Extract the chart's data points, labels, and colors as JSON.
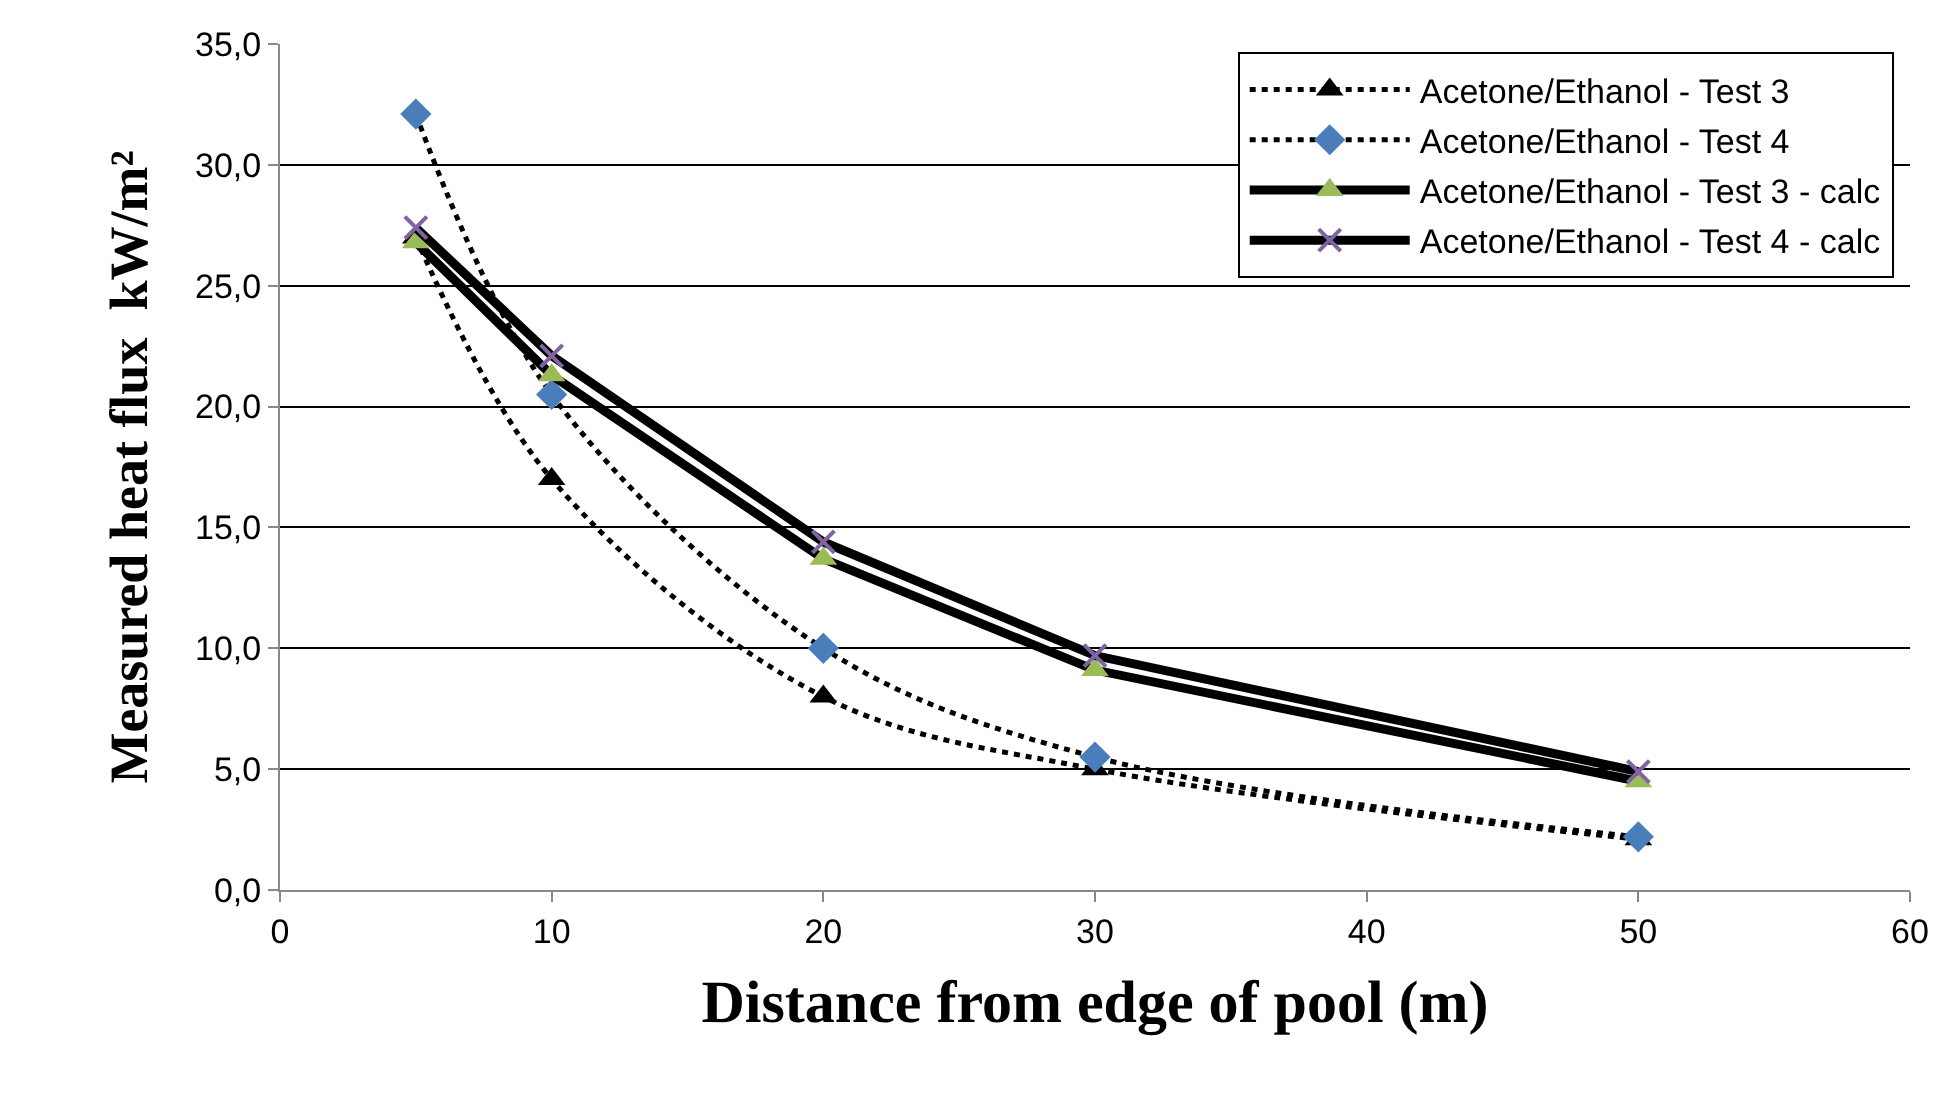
{
  "chart_data": {
    "type": "line",
    "xlabel": "Distance from edge of pool (m)",
    "ylabel": "Measured heat flux  kW/m²",
    "x": [
      5,
      10,
      20,
      30,
      50
    ],
    "series": [
      {
        "name": "Acetone/Ethanol - Test 3",
        "color": "#000000",
        "colors": [
          "#000000",
          "#000000",
          "#000000",
          "#000000",
          "#000000"
        ],
        "marker": "triangle",
        "line_style": "dotted",
        "values": [
          27.0,
          17.0,
          8.0,
          5.0,
          2.1
        ]
      },
      {
        "name": "Acetone/Ethanol - Test 4",
        "color": "#000000",
        "colors": [
          "#4a7ebb",
          "#4a7ebb",
          "#4a7ebb",
          "#4a7ebb",
          "#4a7ebb"
        ],
        "marker": "diamond",
        "line_style": "dotted",
        "values": [
          32.1,
          20.5,
          10.0,
          5.5,
          2.2
        ]
      },
      {
        "name": "Acetone/Ethanol - Test 3 - calc",
        "color": "#000000",
        "colors": [
          "#9bbb59",
          "#9bbb59",
          "#9bbb59",
          "#9bbb59",
          "#9bbb59"
        ],
        "marker": "triangle",
        "line_style": "solid",
        "values": [
          26.8,
          21.3,
          13.7,
          9.1,
          4.5
        ]
      },
      {
        "name": "Acetone/Ethanol - Test 4 - calc",
        "color": "#000000",
        "colors": [
          "#8064a2",
          "#8064a2",
          "#8064a2",
          "#8064a2",
          "#8064a2"
        ],
        "marker": "cross",
        "line_style": "solid",
        "values": [
          27.4,
          22.1,
          14.4,
          9.7,
          4.9
        ]
      }
    ],
    "xlim": [
      0,
      60
    ],
    "xticks": [
      0,
      10,
      20,
      30,
      40,
      50,
      60
    ],
    "ylim": [
      0,
      35
    ],
    "yticks": [
      {
        "value": 0,
        "label": "0,0"
      },
      {
        "value": 5,
        "label": "5,0"
      },
      {
        "value": 10,
        "label": "10,0"
      },
      {
        "value": 15,
        "label": "15,0"
      },
      {
        "value": 20,
        "label": "20,0"
      },
      {
        "value": 25,
        "label": "25,0"
      },
      {
        "value": 30,
        "label": "30,0"
      },
      {
        "value": 35,
        "label": "35,0"
      }
    ],
    "grid": "y",
    "legend": "top right"
  }
}
